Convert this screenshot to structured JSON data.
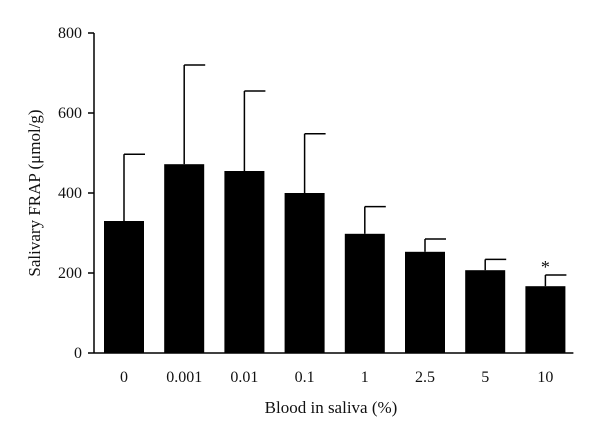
{
  "chart_data": {
    "type": "bar",
    "title": "",
    "xlabel": "Blood in saliva (%)",
    "ylabel": "Salivary FRAP (μmol/g)",
    "categories": [
      "0",
      "0.001",
      "0.01",
      "0.1",
      "1",
      "2.5",
      "5",
      "10"
    ],
    "values": [
      330,
      472,
      455,
      400,
      298,
      253,
      207,
      167
    ],
    "error_upper": [
      167,
      248,
      200,
      148,
      68,
      32,
      27,
      28
    ],
    "ylim": [
      0,
      800
    ],
    "yticks": [
      0,
      200,
      400,
      600,
      800
    ],
    "ytick_labels": [
      "0",
      "200",
      "400",
      "600",
      "800"
    ],
    "annotations": [
      {
        "category": "10",
        "text": "*"
      }
    ],
    "bar_color": "#000000",
    "grid": false,
    "legend": "none"
  }
}
